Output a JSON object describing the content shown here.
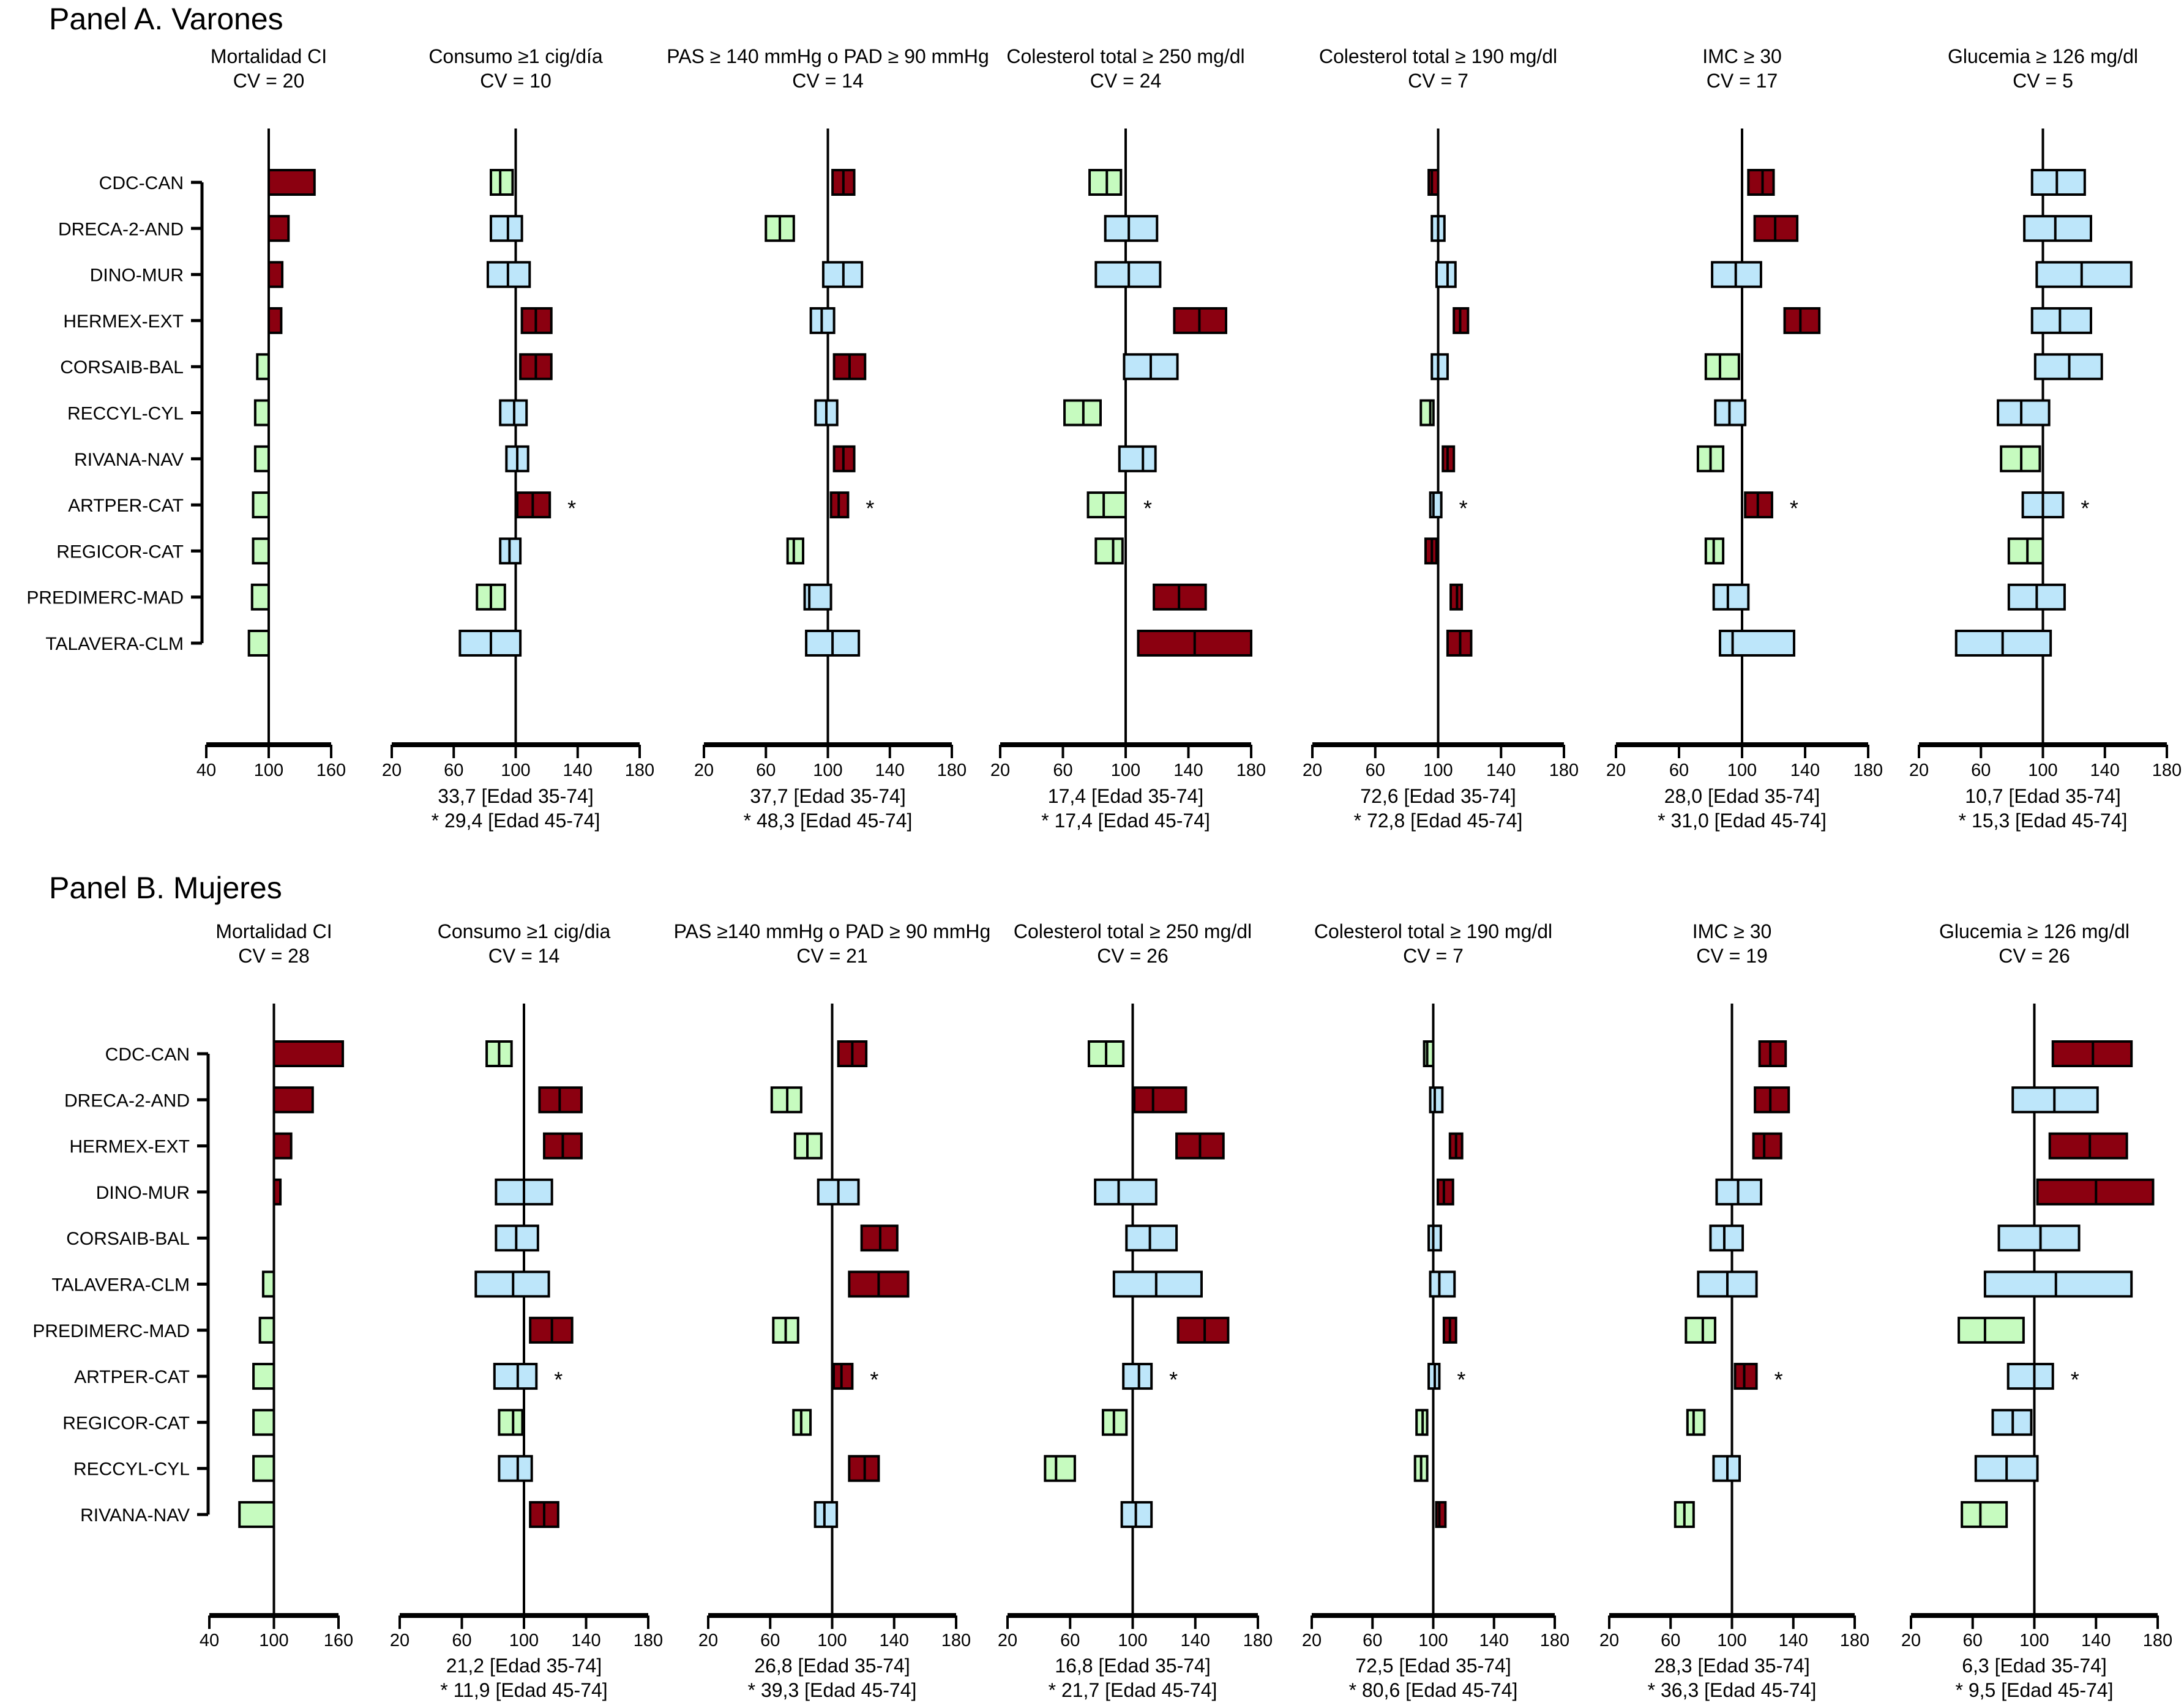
{
  "colors": {
    "above": "#8B0010",
    "similar": "#BDE6FA",
    "below": "#C6FBBF",
    "stroke": "#000000"
  },
  "chart_data": [
    {
      "type": "forest-bar",
      "panel": "Panel A. Varones",
      "categories": [
        "CDC-CAN",
        "DRECA-2-AND",
        "DINO-MUR",
        "HERMEX-EXT",
        "CORSAIB-BAL",
        "RECCYL-CYL",
        "RIVANA-NAV",
        "ARTPER-CAT",
        "REGICOR-CAT",
        "PREDIMERC-MAD",
        "TALAVERA-CLM"
      ],
      "reference": 100,
      "subplots": [
        {
          "title": "Mortalidad CI",
          "cv": "CV = 20",
          "ticks": [
            40,
            100,
            160
          ],
          "xlim": [
            40,
            160
          ],
          "kind": "bar",
          "values": [
            144,
            119,
            113,
            112,
            89,
            87,
            87,
            85,
            85,
            84,
            81
          ],
          "status": [
            "above",
            "above",
            "above",
            "above",
            "below",
            "below",
            "below",
            "below",
            "below",
            "below",
            "below"
          ],
          "asterisk_row": null,
          "footer": []
        },
        {
          "title": "Consumo ≥1 cig/día",
          "cv": "CV = 10",
          "ticks": [
            20,
            60,
            100,
            140,
            180
          ],
          "xlim": [
            20,
            180
          ],
          "kind": "ci",
          "low": [
            84,
            84,
            82,
            104,
            103,
            90,
            94,
            101,
            90,
            75,
            64
          ],
          "point": [
            90,
            95,
            95,
            113,
            113,
            99,
            101,
            111,
            96,
            84,
            84
          ],
          "high": [
            98,
            104,
            109,
            123,
            123,
            107,
            108,
            122,
            103,
            93,
            103
          ],
          "status": [
            "below",
            "similar",
            "similar",
            "above",
            "above",
            "similar",
            "similar",
            "above",
            "similar",
            "below",
            "similar"
          ],
          "asterisk_row": 7,
          "footer": [
            "33,7 [Edad 35-74]",
            "* 29,4 [Edad 45-74]"
          ]
        },
        {
          "title": "PAS ≥  140 mmHg o PAD ≥  90 mmHg",
          "cv": "CV = 14",
          "ticks": [
            20,
            60,
            100,
            140,
            180
          ],
          "xlim": [
            20,
            180
          ],
          "kind": "ci",
          "low": [
            103,
            60,
            97,
            89,
            104,
            92,
            104,
            102,
            74,
            85,
            86
          ],
          "point": [
            110,
            69,
            110,
            96,
            114,
            99,
            110,
            107,
            78,
            88,
            103
          ],
          "high": [
            117,
            78,
            122,
            104,
            124,
            106,
            117,
            113,
            84,
            102,
            120
          ],
          "status": [
            "above",
            "below",
            "similar",
            "similar",
            "above",
            "similar",
            "above",
            "above",
            "below",
            "similar",
            "similar"
          ],
          "asterisk_row": 7,
          "footer": [
            "37,7 [Edad 35-74]",
            "* 48,3 [Edad 45-74]"
          ]
        },
        {
          "title": "Colesterol total ≥ 250 mg/dl",
          "cv": "CV = 24",
          "ticks": [
            20,
            60,
            100,
            140,
            180
          ],
          "xlim": [
            20,
            180
          ],
          "kind": "ci",
          "low": [
            77,
            87,
            81,
            131,
            99,
            61,
            96,
            76,
            81,
            118,
            108
          ],
          "point": [
            88,
            102,
            102,
            147,
            116,
            73,
            111,
            86,
            92,
            134,
            144
          ],
          "high": [
            97,
            120,
            122,
            164,
            133,
            84,
            119,
            100,
            98,
            151,
            180
          ],
          "status": [
            "below",
            "similar",
            "similar",
            "above",
            "similar",
            "below",
            "similar",
            "below",
            "below",
            "above",
            "above"
          ],
          "asterisk_row": 7,
          "footer": [
            "17,4 [Edad 35-74]",
            "* 17,4 [Edad 45-74]"
          ]
        },
        {
          "title": "Colesterol total ≥ 190 mg/dl",
          "cv": "CV = 7",
          "ticks": [
            20,
            60,
            100,
            140,
            180
          ],
          "xlim": [
            20,
            180
          ],
          "kind": "ci",
          "low": [
            94,
            96,
            99,
            110,
            96,
            89,
            103,
            95,
            92,
            108,
            106
          ],
          "point": [
            96,
            100,
            106,
            114,
            100,
            95,
            106,
            97,
            96,
            112,
            114
          ],
          "high": [
            100,
            104,
            111,
            119,
            106,
            97,
            110,
            102,
            99,
            115,
            121
          ],
          "status": [
            "above",
            "similar",
            "similar",
            "above",
            "similar",
            "below",
            "above",
            "similar",
            "above",
            "above",
            "above"
          ],
          "asterisk_row": 7,
          "footer": [
            "72,6 [Edad 35-74]",
            "* 72,8 [Edad 45-74]"
          ]
        },
        {
          "title": "IMC ≥ 30",
          "cv": "CV = 17",
          "ticks": [
            20,
            60,
            100,
            140,
            180
          ],
          "xlim": [
            20,
            180
          ],
          "kind": "ci",
          "low": [
            104,
            108,
            81,
            127,
            77,
            83,
            72,
            102,
            77,
            82,
            86
          ],
          "point": [
            113,
            121,
            96,
            137,
            86,
            92,
            80,
            110,
            82,
            91,
            94
          ],
          "high": [
            120,
            135,
            112,
            149,
            98,
            102,
            88,
            119,
            88,
            104,
            133
          ],
          "status": [
            "above",
            "above",
            "similar",
            "above",
            "below",
            "similar",
            "below",
            "above",
            "below",
            "similar",
            "similar"
          ],
          "asterisk_row": 7,
          "footer": [
            "28,0 [Edad 35-74]",
            "* 31,0 [Edad 45-74]"
          ]
        },
        {
          "title": "Glucemia ≥ 126 mg/dl",
          "cv": "CV = 5",
          "ticks": [
            20,
            60,
            100,
            140,
            180
          ],
          "xlim": [
            20,
            180
          ],
          "kind": "ci",
          "low": [
            93,
            88,
            96,
            93,
            95,
            71,
            73,
            87,
            78,
            78,
            44
          ],
          "point": [
            109,
            108,
            125,
            111,
            117,
            86,
            86,
            100,
            90,
            96,
            74
          ],
          "high": [
            127,
            131,
            157,
            131,
            138,
            104,
            98,
            113,
            100,
            114,
            105
          ],
          "status": [
            "similar",
            "similar",
            "similar",
            "similar",
            "similar",
            "similar",
            "below",
            "similar",
            "below",
            "similar",
            "similar"
          ],
          "asterisk_row": 7,
          "footer": [
            "10,7 [Edad 35-74]",
            "* 15,3 [Edad 45-74]"
          ]
        }
      ]
    },
    {
      "type": "forest-bar",
      "panel": "Panel B. Mujeres",
      "categories": [
        "CDC-CAN",
        "DRECA-2-AND",
        "HERMEX-EXT",
        "DINO-MUR",
        "CORSAIB-BAL",
        "TALAVERA-CLM",
        "PREDIMERC-MAD",
        "ARTPER-CAT",
        "REGICOR-CAT",
        "RECCYL-CYL",
        "RIVANA-NAV"
      ],
      "reference": 100,
      "subplots": [
        {
          "title": "Mortalidad CI",
          "cv": "CV =  28",
          "ticks": [
            40,
            100,
            160
          ],
          "xlim": [
            40,
            160
          ],
          "kind": "bar",
          "values": [
            164,
            136,
            116,
            106,
            100,
            90,
            87,
            81,
            81,
            81,
            68
          ],
          "status": [
            "above",
            "above",
            "above",
            "above",
            "similar",
            "below",
            "below",
            "below",
            "below",
            "below",
            "below"
          ],
          "asterisk_row": null,
          "footer": []
        },
        {
          "title": "Consumo ≥1 cig/dia",
          "cv": "CV = 14",
          "ticks": [
            20,
            60,
            100,
            140,
            180
          ],
          "xlim": [
            20,
            180
          ],
          "kind": "ci",
          "low": [
            76,
            110,
            113,
            82,
            82,
            69,
            104,
            81,
            84,
            84,
            104
          ],
          "point": [
            84,
            123,
            125,
            100,
            95,
            93,
            118,
            96,
            93,
            96,
            113
          ],
          "high": [
            92,
            137,
            137,
            118,
            109,
            116,
            131,
            108,
            99,
            105,
            122
          ],
          "status": [
            "below",
            "above",
            "above",
            "similar",
            "similar",
            "similar",
            "above",
            "similar",
            "below",
            "similar",
            "above"
          ],
          "asterisk_row": 7,
          "footer": [
            "21,2 [Edad 35-74]",
            "* 11,9 [Edad 45-74]"
          ]
        },
        {
          "title": "PAS ≥140 mmHg o  PAD ≥ 90 mmHg",
          "cv": "CV = 21",
          "ticks": [
            20,
            60,
            100,
            140,
            180
          ],
          "xlim": [
            20,
            180
          ],
          "kind": "ci",
          "low": [
            104,
            61,
            76,
            91,
            119,
            111,
            62,
            101,
            75,
            111,
            89
          ],
          "point": [
            113,
            71,
            84,
            104,
            131,
            130,
            70,
            106,
            80,
            121,
            95
          ],
          "high": [
            122,
            80,
            93,
            117,
            142,
            149,
            78,
            113,
            86,
            130,
            103
          ],
          "status": [
            "above",
            "below",
            "below",
            "similar",
            "above",
            "above",
            "below",
            "above",
            "below",
            "above",
            "similar"
          ],
          "asterisk_row": 7,
          "footer": [
            "26,8 [Edad 35-74]",
            "* 39,3 [Edad 45-74]"
          ]
        },
        {
          "title": "Colesterol total ≥ 250 mg/dl",
          "cv": "CV =  26",
          "ticks": [
            20,
            60,
            100,
            140,
            180
          ],
          "xlim": [
            20,
            180
          ],
          "kind": "ci",
          "low": [
            72,
            101,
            128,
            76,
            96,
            88,
            129,
            94,
            81,
            44,
            93
          ],
          "point": [
            83,
            113,
            143,
            91,
            111,
            115,
            146,
            104,
            88,
            51,
            102
          ],
          "high": [
            94,
            134,
            158,
            115,
            128,
            144,
            161,
            112,
            96,
            63,
            112
          ],
          "status": [
            "below",
            "above",
            "above",
            "similar",
            "similar",
            "similar",
            "above",
            "similar",
            "below",
            "below",
            "similar"
          ],
          "asterisk_row": 7,
          "footer": [
            "16,8 [Edad 35-74]",
            "* 21,7 [Edad 45-74]"
          ]
        },
        {
          "title": "Colesterol total ≥ 190 mg/dl",
          "cv": "CV =  7",
          "ticks": [
            20,
            60,
            100,
            140,
            180
          ],
          "xlim": [
            20,
            180
          ],
          "kind": "ci",
          "low": [
            94,
            98,
            111,
            103,
            97,
            98,
            107,
            97,
            89,
            88,
            102
          ],
          "point": [
            96,
            101,
            115,
            107,
            100,
            104,
            111,
            101,
            93,
            92,
            104
          ],
          "high": [
            100,
            106,
            119,
            113,
            105,
            114,
            115,
            104,
            96,
            96,
            108
          ],
          "status": [
            "below",
            "similar",
            "above",
            "above",
            "similar",
            "similar",
            "above",
            "similar",
            "below",
            "below",
            "above"
          ],
          "asterisk_row": 7,
          "footer": [
            "72,5 [Edad 35-74]",
            "* 80,6 [Edad 45-74]"
          ]
        },
        {
          "title": "IMC ≥ 30",
          "cv": "CV = 19",
          "ticks": [
            20,
            60,
            100,
            140,
            180
          ],
          "xlim": [
            20,
            180
          ],
          "kind": "ci",
          "low": [
            118,
            115,
            114,
            90,
            86,
            78,
            70,
            102,
            71,
            88,
            63
          ],
          "point": [
            125,
            125,
            121,
            104,
            95,
            97,
            81,
            108,
            75,
            97,
            69
          ],
          "high": [
            135,
            137,
            132,
            119,
            107,
            116,
            89,
            116,
            82,
            105,
            75
          ],
          "status": [
            "above",
            "above",
            "above",
            "similar",
            "similar",
            "similar",
            "below",
            "above",
            "below",
            "similar",
            "below"
          ],
          "asterisk_row": 7,
          "footer": [
            "28,3 [Edad 35-74]",
            "* 36,3 [Edad 45-74]"
          ]
        },
        {
          "title": "Glucemia ≥ 126 mg/dl",
          "cv": "CV = 26",
          "ticks": [
            20,
            60,
            100,
            140,
            180
          ],
          "xlim": [
            20,
            180
          ],
          "kind": "ci",
          "low": [
            112,
            86,
            110,
            102,
            77,
            68,
            51,
            83,
            73,
            62,
            53
          ],
          "point": [
            138,
            113,
            136,
            140,
            104,
            114,
            68,
            100,
            86,
            82,
            65
          ],
          "high": [
            163,
            141,
            160,
            177,
            129,
            163,
            93,
            112,
            98,
            102,
            82
          ],
          "status": [
            "above",
            "similar",
            "above",
            "above",
            "similar",
            "similar",
            "below",
            "similar",
            "similar",
            "similar",
            "below"
          ],
          "asterisk_row": 7,
          "footer": [
            "6,3 [Edad 35-74]",
            "* 9,5 [Edad 45-74]"
          ]
        }
      ]
    }
  ]
}
